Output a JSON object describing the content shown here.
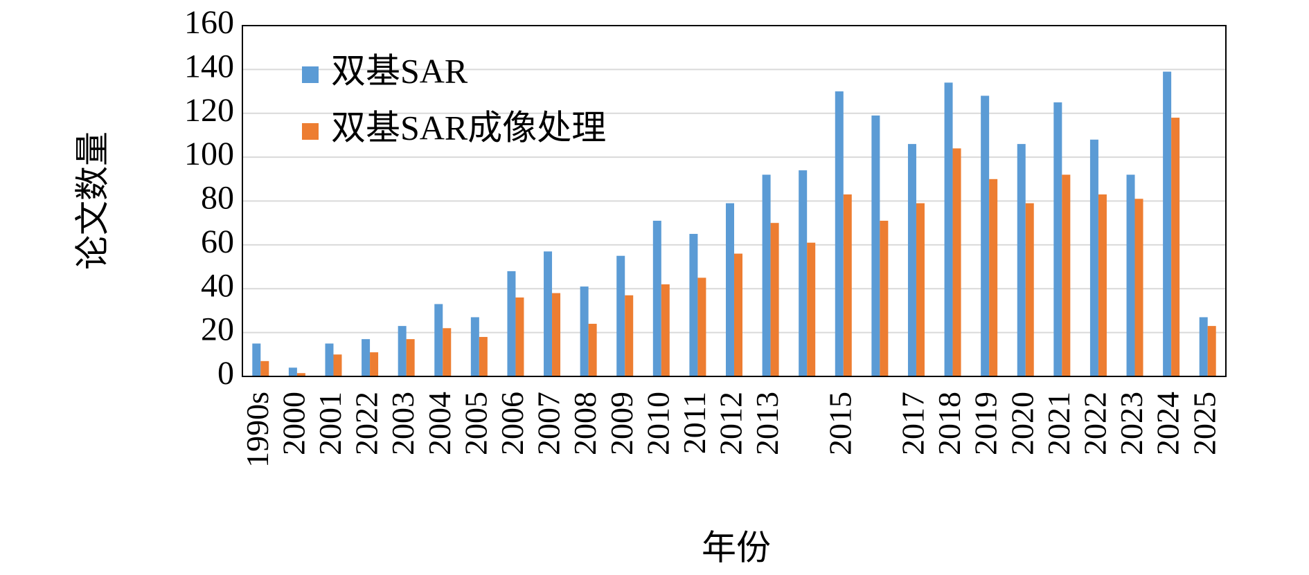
{
  "chart_data": {
    "type": "bar",
    "xlabel": "年份",
    "ylabel": "论文数量",
    "categories": [
      "1990s",
      "2000",
      "2001",
      "2022",
      "2003",
      "2004",
      "2005",
      "2006",
      "2007",
      "2008",
      "2009",
      "2010",
      "2011",
      "2012",
      "2013",
      null,
      "2015",
      null,
      "2017",
      "2018",
      "2019",
      "2020",
      "2021",
      "2022",
      "2023",
      "2024",
      "2025"
    ],
    "series": [
      {
        "name": "双基SAR",
        "color": "#5b9bd5",
        "values": [
          15,
          4,
          15,
          17,
          23,
          33,
          27,
          48,
          57,
          41,
          55,
          71,
          65,
          79,
          92,
          94,
          130,
          119,
          106,
          134,
          128,
          106,
          125,
          108,
          92,
          139,
          27
        ]
      },
      {
        "name": "双基SAR成像处理",
        "color": "#ed7d31",
        "values": [
          7,
          1.5,
          10,
          11,
          17,
          22,
          18,
          36,
          38,
          24,
          37,
          42,
          45,
          56,
          70,
          61,
          83,
          71,
          79,
          104,
          90,
          79,
          92,
          83,
          81,
          118,
          23
        ]
      }
    ],
    "ylim": [
      0,
      160
    ],
    "yticks": [
      0,
      20,
      40,
      60,
      80,
      100,
      120,
      140,
      160
    ],
    "grid": true,
    "legend": "upper left"
  }
}
